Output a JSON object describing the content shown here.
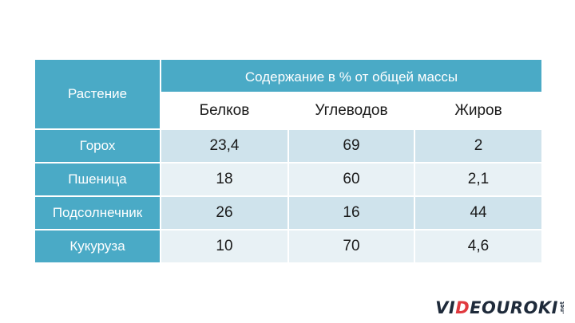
{
  "table": {
    "corner_header": "Растение",
    "group_header": "Содержание в % от общей массы",
    "columns": [
      "Белков",
      "Углеводов",
      "Жиров"
    ],
    "rows": [
      {
        "label": "Горох",
        "values": [
          "23,4",
          "69",
          "2"
        ]
      },
      {
        "label": "Пшеница",
        "values": [
          "18",
          "60",
          "2,1"
        ]
      },
      {
        "label": "Подсолнечник",
        "values": [
          "26",
          "16",
          "44"
        ]
      },
      {
        "label": "Кукуруза",
        "values": [
          "10",
          "70",
          "4,6"
        ]
      }
    ]
  },
  "logo": {
    "prefix": "VI",
    "accent": "D",
    "suffix": "EOUROKI",
    "tld": ".net"
  },
  "colors": {
    "header": "#4aaac6",
    "row_dark": "#cfe3ec",
    "row_light": "#e8f1f5",
    "logo_accent": "#e0393e"
  }
}
